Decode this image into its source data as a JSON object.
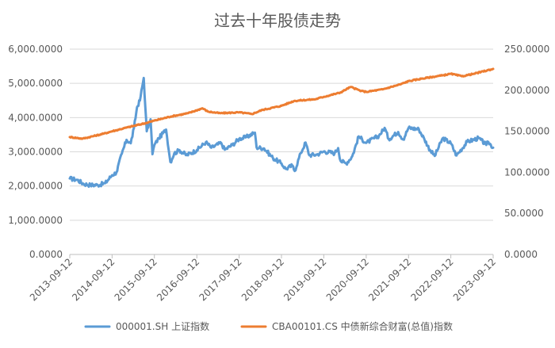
{
  "chart_data": {
    "type": "line",
    "title": "过去十年股债走势",
    "x_ticks": [
      "2013-09-12",
      "2014-09-12",
      "2015-09-12",
      "2016-09-12",
      "2017-09-12",
      "2018-09-12",
      "2019-09-12",
      "2020-09-12",
      "2021-09-12",
      "2022-09-12",
      "2023-09-12"
    ],
    "y_left": {
      "ticks": [
        "0.0000",
        "1,000.0000",
        "2,000.0000",
        "3,000.0000",
        "4,000.0000",
        "5,000.0000",
        "6,000.0000"
      ],
      "ylim": [
        0,
        6000
      ]
    },
    "y_right": {
      "ticks": [
        "0.0000",
        "50.0000",
        "100.0000",
        "150.0000",
        "200.0000",
        "250.0000"
      ],
      "ylim": [
        0,
        250
      ]
    },
    "grid": true,
    "legend_position": "bottom",
    "series": [
      {
        "name": "000001.SH 上证指数",
        "axis": "left",
        "color": "#5b9bd5",
        "points": [
          [
            "2013-09-12",
            2220
          ],
          [
            "2013-11-15",
            2180
          ],
          [
            "2014-01-10",
            2060
          ],
          [
            "2014-03-10",
            2030
          ],
          [
            "2014-05-12",
            2030
          ],
          [
            "2014-07-14",
            2080
          ],
          [
            "2014-09-12",
            2320
          ],
          [
            "2014-10-20",
            2400
          ],
          [
            "2014-12-05",
            2950
          ],
          [
            "2015-01-15",
            3350
          ],
          [
            "2015-02-20",
            3250
          ],
          [
            "2015-03-20",
            3700
          ],
          [
            "2015-04-15",
            4300
          ],
          [
            "2015-05-10",
            4500
          ],
          [
            "2015-06-12",
            5160
          ],
          [
            "2015-06-26",
            4300
          ],
          [
            "2015-07-08",
            3600
          ],
          [
            "2015-08-10",
            3950
          ],
          [
            "2015-08-26",
            2930
          ],
          [
            "2015-09-12",
            3200
          ],
          [
            "2015-10-20",
            3400
          ],
          [
            "2015-12-22",
            3650
          ],
          [
            "2016-01-28",
            2700
          ],
          [
            "2016-03-01",
            2950
          ],
          [
            "2016-04-15",
            3050
          ],
          [
            "2016-06-15",
            2900
          ],
          [
            "2016-09-12",
            3050
          ],
          [
            "2016-11-29",
            3280
          ],
          [
            "2017-01-15",
            3120
          ],
          [
            "2017-04-10",
            3260
          ],
          [
            "2017-05-11",
            3060
          ],
          [
            "2017-07-15",
            3200
          ],
          [
            "2017-09-12",
            3380
          ],
          [
            "2017-11-13",
            3430
          ],
          [
            "2018-01-26",
            3560
          ],
          [
            "2018-02-09",
            3130
          ],
          [
            "2018-04-15",
            3100
          ],
          [
            "2018-06-30",
            2820
          ],
          [
            "2018-09-12",
            2660
          ],
          [
            "2018-10-19",
            2500
          ],
          [
            "2018-12-15",
            2600
          ],
          [
            "2019-01-04",
            2440
          ],
          [
            "2019-02-25",
            2960
          ],
          [
            "2019-04-08",
            3270
          ],
          [
            "2019-05-10",
            2900
          ],
          [
            "2019-07-15",
            2920
          ],
          [
            "2019-09-12",
            3010
          ],
          [
            "2019-12-15",
            2960
          ],
          [
            "2020-01-14",
            3110
          ],
          [
            "2020-02-03",
            2740
          ],
          [
            "2020-03-23",
            2660
          ],
          [
            "2020-05-15",
            2870
          ],
          [
            "2020-07-09",
            3450
          ],
          [
            "2020-09-12",
            3260
          ],
          [
            "2020-12-31",
            3470
          ],
          [
            "2021-02-18",
            3700
          ],
          [
            "2021-03-25",
            3370
          ],
          [
            "2021-06-15",
            3580
          ],
          [
            "2021-07-28",
            3360
          ],
          [
            "2021-09-12",
            3700
          ],
          [
            "2021-12-10",
            3660
          ],
          [
            "2022-01-28",
            3360
          ],
          [
            "2022-03-15",
            3060
          ],
          [
            "2022-04-26",
            2880
          ],
          [
            "2022-07-05",
            3400
          ],
          [
            "2022-09-12",
            3250
          ],
          [
            "2022-10-31",
            2890
          ],
          [
            "2023-01-30",
            3290
          ],
          [
            "2023-05-09",
            3400
          ],
          [
            "2023-07-15",
            3200
          ],
          [
            "2023-08-01",
            3290
          ],
          [
            "2023-09-12",
            3120
          ]
        ]
      },
      {
        "name": "CBA00101.CS 中债新综合财富(总值)指数",
        "axis": "right",
        "color": "#ed7d31",
        "points": [
          [
            "2013-09-12",
            143
          ],
          [
            "2013-12-31",
            141
          ],
          [
            "2014-06-30",
            147
          ],
          [
            "2014-09-12",
            150
          ],
          [
            "2015-01-31",
            155
          ],
          [
            "2015-06-30",
            160
          ],
          [
            "2015-09-12",
            163
          ],
          [
            "2016-01-31",
            168
          ],
          [
            "2016-06-30",
            172
          ],
          [
            "2016-10-31",
            178
          ],
          [
            "2016-12-15",
            174
          ],
          [
            "2017-03-31",
            172
          ],
          [
            "2017-09-12",
            173
          ],
          [
            "2017-12-31",
            171
          ],
          [
            "2018-03-31",
            176
          ],
          [
            "2018-09-12",
            181
          ],
          [
            "2018-12-31",
            187
          ],
          [
            "2019-06-30",
            189
          ],
          [
            "2019-09-12",
            192
          ],
          [
            "2020-01-31",
            197
          ],
          [
            "2020-04-30",
            204
          ],
          [
            "2020-07-31",
            199
          ],
          [
            "2020-09-12",
            198
          ],
          [
            "2021-01-31",
            201
          ],
          [
            "2021-06-30",
            207
          ],
          [
            "2021-09-12",
            211
          ],
          [
            "2021-12-31",
            214
          ],
          [
            "2022-06-30",
            218
          ],
          [
            "2022-09-12",
            220
          ],
          [
            "2022-12-15",
            217
          ],
          [
            "2023-03-31",
            220
          ],
          [
            "2023-09-12",
            226
          ]
        ]
      }
    ]
  }
}
